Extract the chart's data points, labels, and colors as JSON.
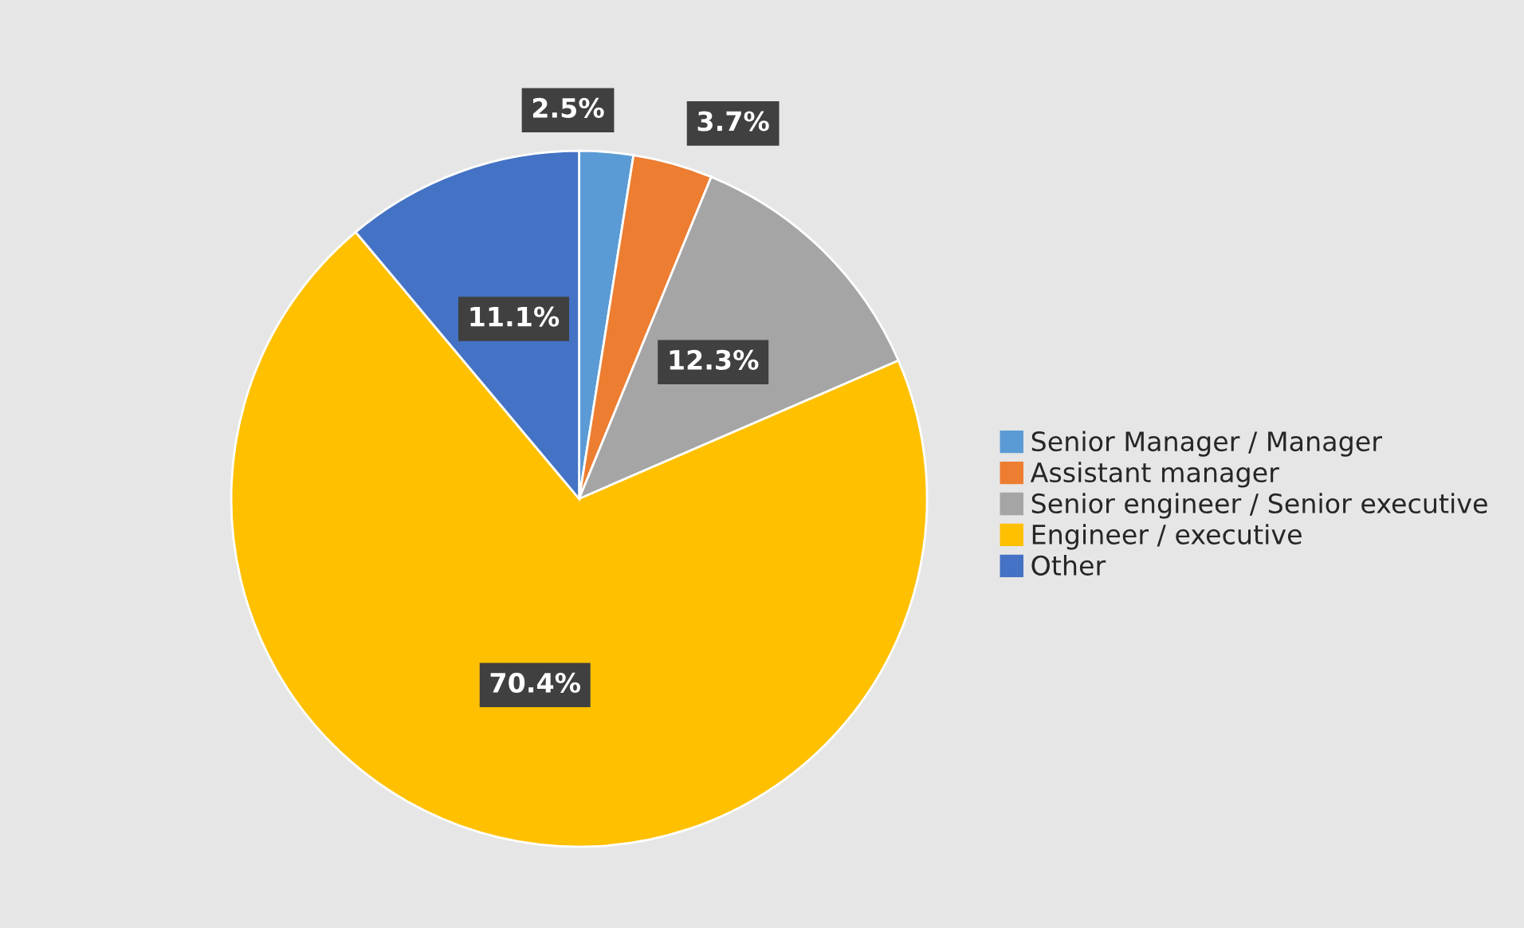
{
  "chart_data": {
    "type": "pie",
    "categories": [
      "Senior Manager / Manager",
      "Assistant manager",
      "Senior engineer / Senior executive",
      "Engineer / executive",
      "Other"
    ],
    "values": [
      2.5,
      3.7,
      12.3,
      70.4,
      11.1
    ],
    "value_labels": [
      "2.5%",
      "3.7%",
      "12.3%",
      "70.4%",
      "11.1%"
    ],
    "colors": [
      "#5b9bd5",
      "#ed7d31",
      "#a5a5a5",
      "#ffc000",
      "#4472c4"
    ],
    "legend": "right"
  }
}
